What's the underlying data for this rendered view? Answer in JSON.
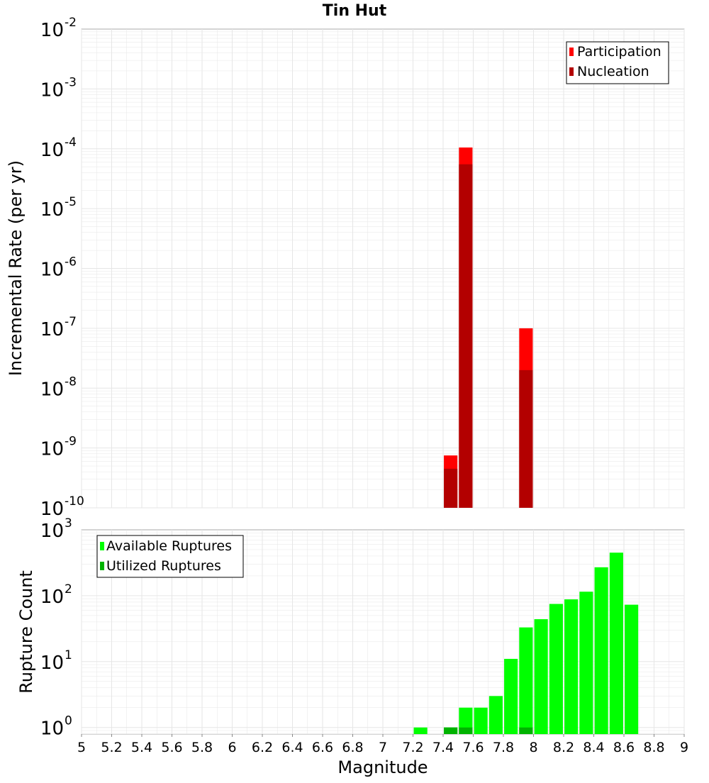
{
  "title": "Tin Hut",
  "xlabel": "Magnitude",
  "x_ticks": [
    "5",
    "5.2",
    "5.4",
    "5.6",
    "5.8",
    "6",
    "6.2",
    "6.4",
    "6.6",
    "6.8",
    "7",
    "7.2",
    "7.4",
    "7.6",
    "7.8",
    "8",
    "8.2",
    "8.4",
    "8.6",
    "8.8",
    "9"
  ],
  "colors": {
    "participation": "#ff0000",
    "nucleation": "#b30000",
    "available": "#00ff00",
    "utilized": "#00b300",
    "grid": "#e6e6e6",
    "frame": "#aaaaaa"
  },
  "chart_data": [
    {
      "type": "bar",
      "scale": "log",
      "ylabel": "Incremental Rate (per yr)",
      "xlim": [
        5,
        9
      ],
      "ylim_exp": [
        -10,
        -2
      ],
      "y_ticks": [
        {
          "base": "10",
          "exp": "-2"
        },
        {
          "base": "10",
          "exp": "-3"
        },
        {
          "base": "10",
          "exp": "-4"
        },
        {
          "base": "10",
          "exp": "-5"
        },
        {
          "base": "10",
          "exp": "-6"
        },
        {
          "base": "10",
          "exp": "-7"
        },
        {
          "base": "10",
          "exp": "-8"
        },
        {
          "base": "10",
          "exp": "-9"
        },
        {
          "base": "10",
          "exp": "-10"
        }
      ],
      "legend": {
        "position": "top-right",
        "entries": [
          "Participation",
          "Nucleation"
        ]
      },
      "series": [
        {
          "name": "Participation",
          "color": "#ff0000",
          "points": [
            [
              7.45,
              7.5e-10
            ],
            [
              7.55,
              0.000105
            ],
            [
              7.95,
              1e-07
            ]
          ]
        },
        {
          "name": "Nucleation",
          "color": "#b30000",
          "points": [
            [
              7.45,
              4.5e-10
            ],
            [
              7.55,
              5.5e-05
            ],
            [
              7.95,
              2e-08
            ]
          ]
        }
      ]
    },
    {
      "type": "bar",
      "scale": "log",
      "ylabel": "Rupture Count",
      "xlim": [
        5,
        9
      ],
      "ylim_exp": [
        -0.1,
        3
      ],
      "y_ticks": [
        {
          "base": "10",
          "exp": "3"
        },
        {
          "base": "10",
          "exp": "2"
        },
        {
          "base": "10",
          "exp": "1"
        },
        {
          "base": "10",
          "exp": "0"
        }
      ],
      "legend": {
        "position": "top-left",
        "entries": [
          "Available Ruptures",
          "Utilized Ruptures"
        ]
      },
      "series": [
        {
          "name": "Available Ruptures",
          "color": "#00ff00",
          "points": [
            [
              7.25,
              1
            ],
            [
              7.45,
              1
            ],
            [
              7.55,
              2
            ],
            [
              7.65,
              2
            ],
            [
              7.75,
              3
            ],
            [
              7.85,
              11
            ],
            [
              7.95,
              33
            ],
            [
              8.05,
              44
            ],
            [
              8.15,
              75
            ],
            [
              8.25,
              88
            ],
            [
              8.35,
              115
            ],
            [
              8.45,
              270
            ],
            [
              8.55,
              450
            ],
            [
              8.65,
              73
            ]
          ]
        },
        {
          "name": "Utilized Ruptures",
          "color": "#00b300",
          "points": [
            [
              7.45,
              1
            ],
            [
              7.55,
              1
            ],
            [
              7.95,
              1
            ]
          ]
        }
      ]
    }
  ]
}
